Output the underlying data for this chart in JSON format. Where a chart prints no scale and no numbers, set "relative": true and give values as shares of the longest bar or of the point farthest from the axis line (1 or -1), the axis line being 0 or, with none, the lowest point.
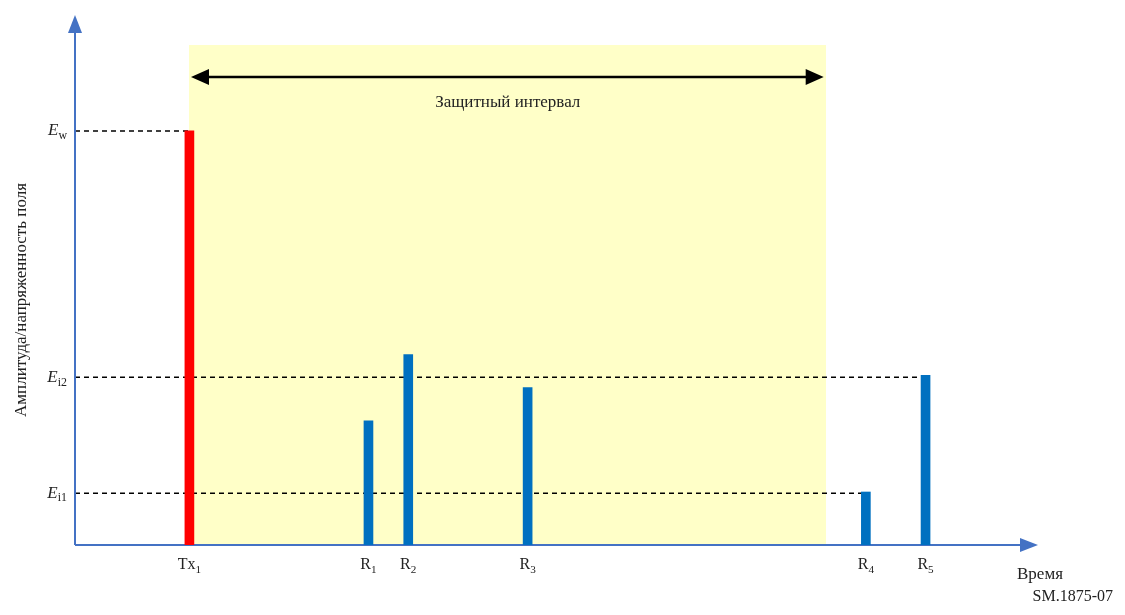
{
  "chart_data": {
    "type": "bar",
    "relative": true,
    "xlabel": "Время",
    "ylabel": "Амплитуда/напряженность поля",
    "categories": [
      null,
      null,
      null,
      null,
      null,
      null,
      null,
      null,
      null,
      null,
      null,
      "Tx$_{1}$",
      null,
      null,
      null,
      null,
      null,
      null,
      null,
      null,
      null,
      null,
      null,
      null,
      null,
      null,
      null,
      null,
      null,
      "R$_{1}$",
      null,
      null,
      null,
      "R$_{2}$",
      null,
      null,
      null,
      null,
      null,
      null,
      null,
      null,
      null,
      null,
      null,
      "R$_{3}$",
      null,
      null,
      null,
      null,
      null,
      null,
      null,
      null,
      null,
      null,
      null,
      null,
      null,
      null,
      null,
      null,
      null,
      null,
      null,
      null,
      null,
      null,
      null,
      null,
      null,
      null,
      null,
      null,
      null,
      null,
      null,
      null,
      null,
      "R$_{4}$",
      null,
      null,
      null,
      null,
      null,
      "R$_{5}$",
      null,
      null,
      null,
      null,
      null,
      null,
      null,
      null,
      null,
      null
    ],
    "values": [
      null,
      null,
      null,
      null,
      null,
      null,
      null,
      null,
      null,
      null,
      null,
      1,
      null,
      null,
      null,
      null,
      null,
      null,
      null,
      null,
      null,
      null,
      null,
      null,
      null,
      null,
      null,
      null,
      null,
      0.3,
      null,
      null,
      null,
      0.46,
      null,
      null,
      null,
      null,
      null,
      null,
      null,
      null,
      null,
      null,
      null,
      0.38,
      null,
      null,
      null,
      null,
      null,
      null,
      null,
      null,
      null,
      null,
      null,
      null,
      null,
      null,
      null,
      null,
      null,
      null,
      null,
      null,
      null,
      null,
      null,
      null,
      null,
      null,
      null,
      null,
      null,
      null,
      null,
      null,
      null,
      0.128,
      null,
      null,
      null,
      null,
      null,
      0.41,
      null,
      null,
      null,
      null,
      null,
      null,
      null,
      null,
      null,
      null
    ],
    "colors": [
      "#0070c0",
      "#0070c0",
      "#0070c0",
      "#0070c0",
      "#0070c0",
      "#0070c0",
      "#0070c0",
      "#0070c0",
      "#0070c0",
      "#0070c0",
      "#0070c0",
      "#ff0000",
      "#0070c0",
      "#0070c0",
      "#0070c0",
      "#0070c0",
      "#0070c0",
      "#0070c0",
      "#0070c0",
      "#0070c0",
      "#0070c0",
      "#0070c0",
      "#0070c0",
      "#0070c0",
      "#0070c0",
      "#0070c0",
      "#0070c0",
      "#0070c0",
      "#0070c0",
      "#0070c0",
      "#0070c0",
      "#0070c0",
      "#0070c0",
      "#0070c0",
      "#0070c0",
      "#0070c0",
      "#0070c0",
      "#0070c0",
      "#0070c0",
      "#0070c0",
      "#0070c0",
      "#0070c0",
      "#0070c0",
      "#0070c0",
      "#0070c0",
      "#0070c0",
      "#0070c0",
      "#0070c0",
      "#0070c0",
      "#0070c0",
      "#0070c0",
      "#0070c0",
      "#0070c0",
      "#0070c0",
      "#0070c0",
      "#0070c0",
      "#0070c0",
      "#0070c0",
      "#0070c0",
      "#0070c0",
      "#0070c0",
      "#0070c0",
      "#0070c0",
      "#0070c0",
      "#0070c0",
      "#0070c0",
      "#0070c0",
      "#0070c0",
      "#0070c0",
      "#0070c0",
      "#0070c0",
      "#0070c0",
      "#0070c0",
      "#0070c0",
      "#0070c0",
      "#0070c0",
      "#0070c0",
      "#0070c0",
      "#0070c0",
      "#0070c0",
      "#0070c0",
      "#0070c0",
      "#0070c0",
      "#0070c0",
      "#0070c0",
      "#0070c0",
      "#0070c0",
      "#0070c0",
      "#0070c0",
      "#0070c0",
      "#0070c0",
      "#0070c0",
      "#0070c0",
      "#0070c0",
      "#0070c0",
      "#0070c0"
    ],
    "tick_labels": "x",
    "legend": false,
    "ref_lines": [
      {
        "axis": "y",
        "value": 1,
        "label": "E$_{w}$",
        "line_style": "dashed",
        "color": "#000000"
      },
      {
        "axis": "y",
        "value": 0.405,
        "label": "E$_{i2}$",
        "line_style": "dashed",
        "color": "#000000"
      },
      {
        "axis": "y",
        "value": 0.125,
        "label": "E$_{i1}$",
        "line_style": "dashed",
        "color": "#000000"
      }
    ],
    "annotations": [
      "Защитный интервал",
      "SM.1875-07"
    ]
  }
}
